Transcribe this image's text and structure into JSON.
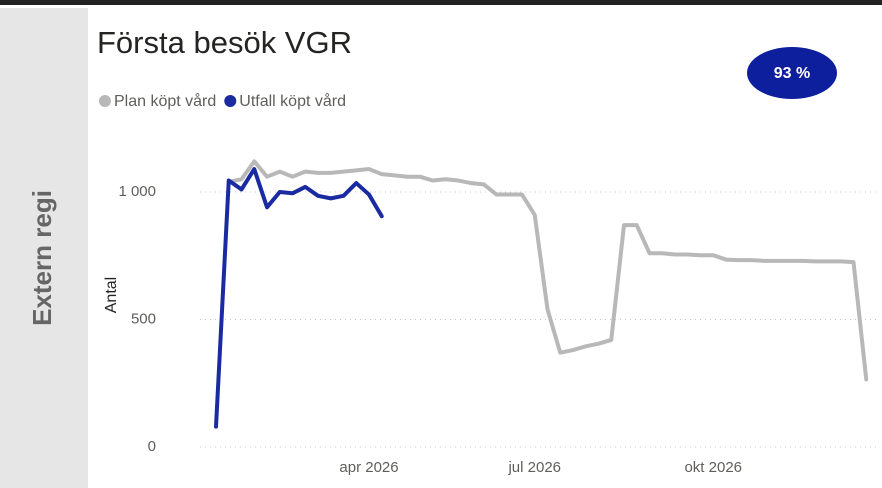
{
  "side_label": "Extern regi",
  "badge": "93 %",
  "chart_data": {
    "type": "line",
    "title": "Första besök VGR",
    "y_label": "Antal",
    "categories": [
      null,
      null,
      null,
      null,
      null,
      null,
      null,
      null,
      null,
      null,
      null,
      null,
      "apr 2026",
      null,
      null,
      null,
      null,
      null,
      null,
      null,
      null,
      null,
      null,
      null,
      null,
      "jul 2026",
      null,
      null,
      null,
      null,
      null,
      null,
      null,
      null,
      null,
      null,
      null,
      null,
      null,
      "okt 2026",
      null,
      null,
      null,
      null,
      null,
      null,
      null,
      null,
      null,
      null,
      null,
      null
    ],
    "series": [
      {
        "name": "Plan köpt vård",
        "color": "#b8b8b8",
        "values": [
          null,
          1040,
          1050,
          1120,
          1060,
          1080,
          1060,
          1080,
          1075,
          1075,
          1080,
          1085,
          1090,
          1070,
          1065,
          1060,
          1060,
          1045,
          1050,
          1045,
          1035,
          1030,
          990,
          990,
          990,
          910,
          540,
          370,
          380,
          395,
          405,
          420,
          870,
          870,
          760,
          760,
          755,
          755,
          752,
          752,
          735,
          733,
          733,
          730,
          730,
          730,
          730,
          728,
          728,
          728,
          725,
          265
        ]
      },
      {
        "name": "Utfall köpt vård",
        "color": "#1a2aa0",
        "values": [
          80,
          1045,
          1010,
          1090,
          940,
          1000,
          995,
          1020,
          985,
          975,
          985,
          1035,
          990,
          905,
          null,
          null,
          null,
          null,
          null,
          null,
          null,
          null,
          null,
          null,
          null,
          null,
          null,
          null,
          null,
          null,
          null,
          null,
          null,
          null,
          null,
          null,
          null,
          null,
          null,
          null,
          null,
          null,
          null,
          null,
          null,
          null,
          null,
          null,
          null,
          null,
          null,
          null
        ]
      }
    ],
    "ylim": [
      0,
      1200
    ],
    "yticks": [
      0,
      500,
      {
        "value": 1000,
        "label": "1 000"
      }
    ],
    "grid": true,
    "legend": "top-left"
  }
}
